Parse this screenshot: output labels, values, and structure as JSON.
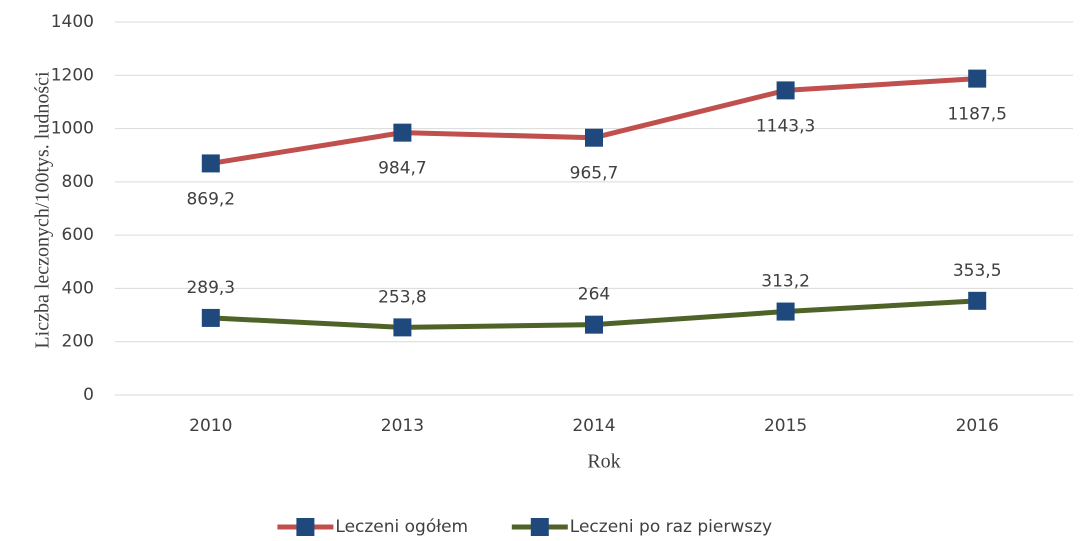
{
  "chart_data": {
    "type": "line",
    "y_label": "Liczba leczonych/100tys. ludności",
    "x_label": "Rok",
    "categories": [
      "2010",
      "2013",
      "2014",
      "2015",
      "2016"
    ],
    "series": [
      {
        "name": "Leczeni ogółem",
        "color": "#c0504d",
        "marker_color": "#1f497d",
        "label_position": "below",
        "values": [
          869.2,
          984.7,
          965.7,
          1143.3,
          1187.5
        ],
        "value_labels": [
          "869,2",
          "984,7",
          "965,7",
          "1143,3",
          "1187,5"
        ]
      },
      {
        "name": "Leczeni po raz pierwszy",
        "color": "#4f6228",
        "marker_color": "#1f497d",
        "label_position": "above",
        "values": [
          289.3,
          253.8,
          264,
          313.2,
          353.5
        ],
        "value_labels": [
          "289,3",
          "253,8",
          "264",
          "313,2",
          "353,5"
        ]
      }
    ],
    "ylim": [
      0,
      1400
    ],
    "yticks": [
      0,
      200,
      400,
      600,
      800,
      1000,
      1200,
      1400
    ],
    "grid": true,
    "legend": "bottom"
  }
}
